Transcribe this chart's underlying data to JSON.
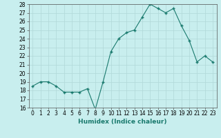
{
  "x": [
    0,
    1,
    2,
    3,
    4,
    5,
    6,
    7,
    8,
    9,
    10,
    11,
    12,
    13,
    14,
    15,
    16,
    17,
    18,
    19,
    20,
    21,
    22,
    23
  ],
  "y": [
    18.5,
    19.0,
    19.0,
    18.5,
    17.8,
    17.8,
    17.8,
    18.2,
    15.8,
    19.0,
    22.5,
    24.0,
    24.7,
    25.0,
    26.5,
    28.0,
    27.5,
    27.0,
    27.5,
    25.5,
    23.8,
    21.3,
    22.0,
    21.3
  ],
  "line_color": "#1a7a6e",
  "marker": "+",
  "marker_color": "#1a7a6e",
  "bg_color": "#c8eeee",
  "grid_color": "#b0d8d8",
  "xlabel": "Humidex (Indice chaleur)",
  "ylim": [
    16,
    28
  ],
  "yticks": [
    16,
    17,
    18,
    19,
    20,
    21,
    22,
    23,
    24,
    25,
    26,
    27,
    28
  ],
  "xticks": [
    0,
    1,
    2,
    3,
    4,
    5,
    6,
    7,
    8,
    9,
    10,
    11,
    12,
    13,
    14,
    15,
    16,
    17,
    18,
    19,
    20,
    21,
    22,
    23
  ],
  "tick_label_fontsize": 5.5,
  "xlabel_fontsize": 6.5,
  "linewidth": 0.8,
  "markersize": 3
}
